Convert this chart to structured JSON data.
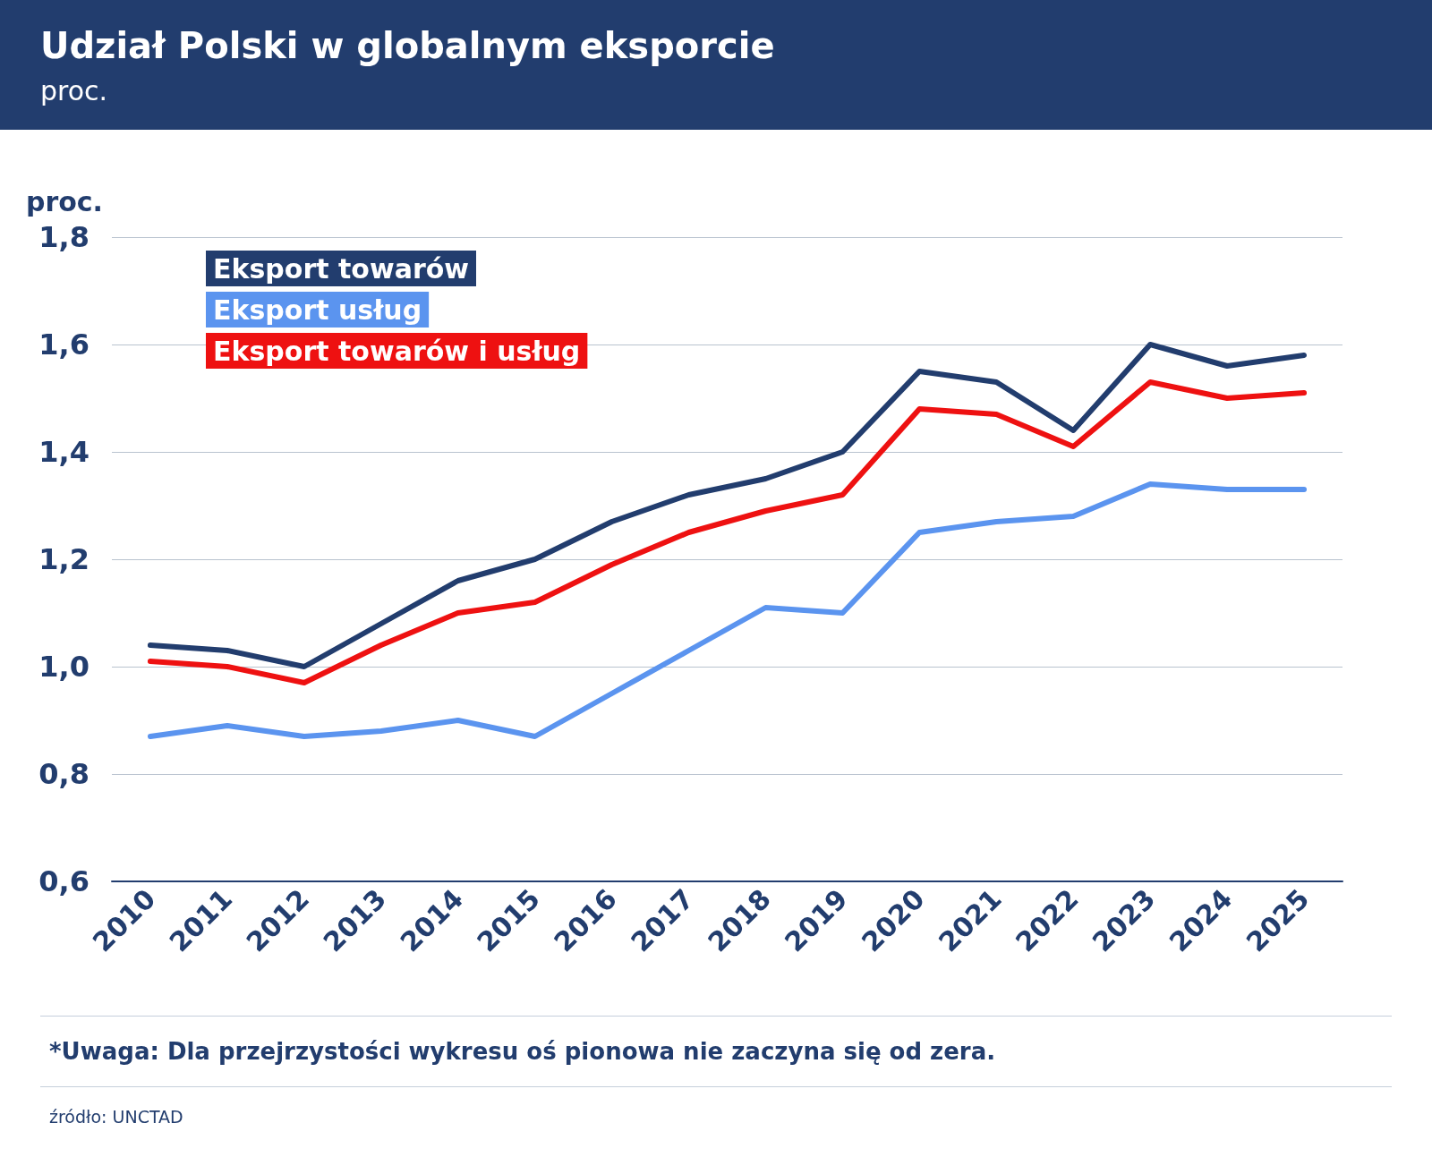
{
  "chart_data": {
    "type": "line",
    "title": "Udział Polski w globalnym eksporcie",
    "subtitle": "proc.",
    "ylabel": "proc.",
    "categories": [
      "2010",
      "2011",
      "2012",
      "2013",
      "2014",
      "2015",
      "2016",
      "2017",
      "2018",
      "2019",
      "2020",
      "2021",
      "2022",
      "2023",
      "2024",
      "2025"
    ],
    "series": [
      {
        "name": "Eksport towarów",
        "color": "#223d6e",
        "values": [
          1.04,
          1.03,
          1.0,
          1.08,
          1.16,
          1.2,
          1.27,
          1.32,
          1.35,
          1.4,
          1.55,
          1.53,
          1.44,
          1.6,
          1.56,
          1.58
        ]
      },
      {
        "name": "Eksport usług",
        "color": "#5b94ef",
        "values": [
          0.87,
          0.89,
          0.87,
          0.88,
          0.9,
          0.87,
          0.95,
          1.03,
          1.11,
          1.1,
          1.25,
          1.27,
          1.28,
          1.34,
          1.33,
          1.33
        ]
      },
      {
        "name": "Eksport towarów i usług",
        "color": "#ee1111",
        "values": [
          1.01,
          1.0,
          0.97,
          1.04,
          1.1,
          1.12,
          1.19,
          1.25,
          1.29,
          1.32,
          1.48,
          1.47,
          1.41,
          1.53,
          1.5,
          1.51
        ]
      }
    ],
    "ylim": [
      0.6,
      1.8
    ],
    "yticks": [
      {
        "value": 0.6,
        "label": "0,6"
      },
      {
        "value": 0.8,
        "label": "0,8"
      },
      {
        "value": 1.0,
        "label": "1,0"
      },
      {
        "value": 1.2,
        "label": "1,2"
      },
      {
        "value": 1.4,
        "label": "1,4"
      },
      {
        "value": 1.6,
        "label": "1,6"
      },
      {
        "value": 1.8,
        "label": "1,8"
      }
    ],
    "grid": "y",
    "legend": "top left",
    "marker": "none",
    "line_style": "solid",
    "annotations": [
      "*Uwaga: Dla przejrzystości wykresu oś pionowa nie zaczyna się od zera.",
      "źródło: UNCTAD"
    ]
  }
}
